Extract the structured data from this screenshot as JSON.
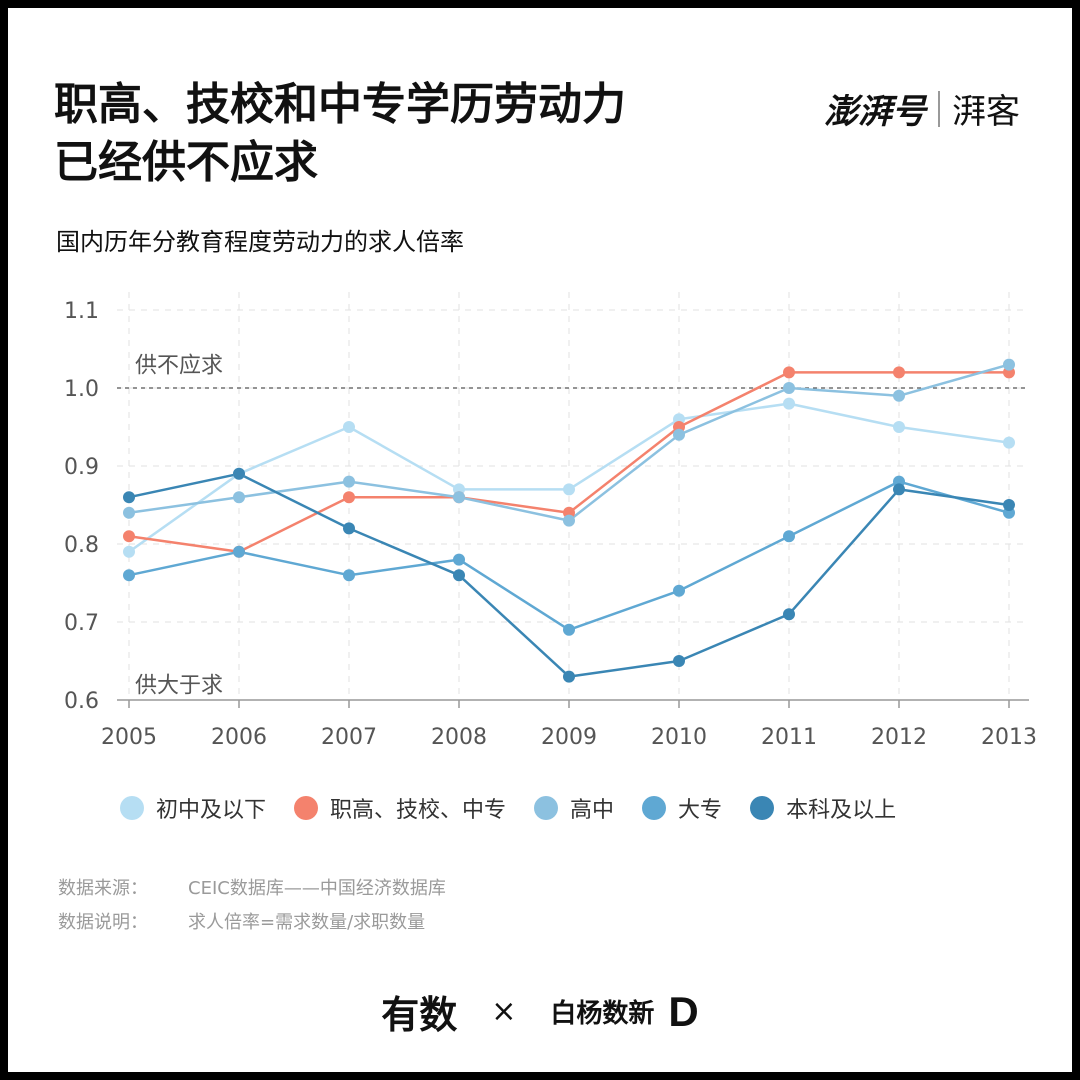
{
  "title": {
    "line1": "职高、技校和中专学历劳动力",
    "line2": "已经供不应求"
  },
  "brand": {
    "main": "澎湃号",
    "sub": "湃客"
  },
  "notes": {
    "source_label": "数据来源：",
    "source_value": "CEIC数据库——中国经济数据库",
    "desc_label": "数据说明：",
    "desc_value": "求人倍率=需求数量/求职数量"
  },
  "footer": {
    "left": "有数",
    "cross": "×",
    "right": "白杨数新",
    "right_logo": "D"
  },
  "chart_data": {
    "type": "line",
    "title": "国内历年分教育程度劳动力的求人倍率",
    "x": [
      "2005",
      "2006",
      "2007",
      "2008",
      "2009",
      "2010",
      "2011",
      "2012",
      "2013"
    ],
    "ylim": [
      0.6,
      1.1
    ],
    "yticks": [
      0.6,
      0.7,
      0.8,
      0.9,
      1.0,
      1.1
    ],
    "ytick_labels": [
      "0.6",
      "0.7",
      "0.8",
      "0.9",
      "1.0",
      "1.1"
    ],
    "grid": true,
    "reference_line": {
      "y": 1.0,
      "style": "dashed"
    },
    "annotations": [
      {
        "text": "供不应求",
        "x": "2005",
        "y": 1.03
      },
      {
        "text": "供大于求",
        "x": "2005",
        "y": 0.62
      }
    ],
    "legend_position": "bottom",
    "series": [
      {
        "name": "初中及以下",
        "color": "#b6def3",
        "values": [
          0.79,
          0.89,
          0.95,
          0.87,
          0.87,
          0.96,
          0.98,
          0.95,
          0.93
        ]
      },
      {
        "name": "职高、技校、中专",
        "color": "#f4826d",
        "values": [
          0.81,
          0.79,
          0.86,
          0.86,
          0.84,
          0.95,
          1.02,
          1.02,
          1.02
        ]
      },
      {
        "name": "高中",
        "color": "#8cc1e0",
        "values": [
          0.84,
          0.86,
          0.88,
          0.86,
          0.83,
          0.94,
          1.0,
          0.99,
          1.03
        ]
      },
      {
        "name": "大专",
        "color": "#5fa8d3",
        "values": [
          0.76,
          0.79,
          0.76,
          0.78,
          0.69,
          0.74,
          0.81,
          0.88,
          0.84
        ]
      },
      {
        "name": "本科及以上",
        "color": "#3a86b4",
        "values": [
          0.86,
          0.89,
          0.82,
          0.76,
          0.63,
          0.65,
          0.71,
          0.87,
          0.85
        ]
      }
    ]
  }
}
